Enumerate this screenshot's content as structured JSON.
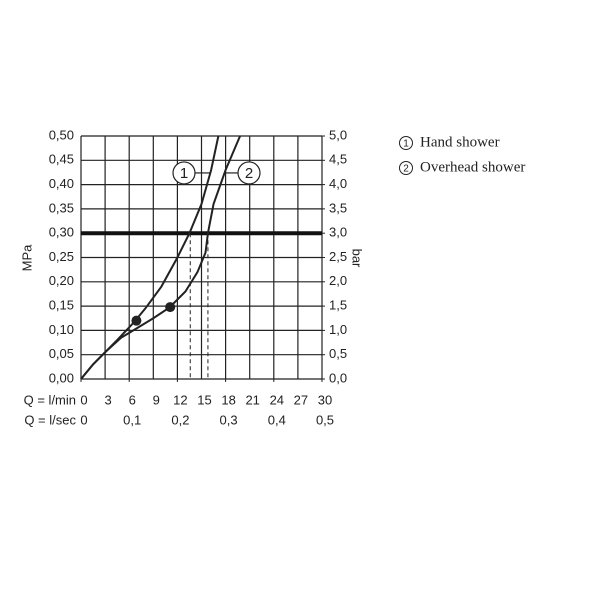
{
  "chart_data": {
    "type": "line",
    "xlabel": "Q = l/min",
    "x2label": "Q = l/sec",
    "ylabel": "MPa",
    "y2label": "bar",
    "xlim": [
      0,
      30
    ],
    "xticks": [
      0,
      3,
      6,
      9,
      12,
      15,
      18,
      21,
      24,
      27,
      30
    ],
    "x2lim": [
      0,
      0.5
    ],
    "x2ticks": [
      0,
      {
        "value": 0.1,
        "label": "0,1"
      },
      {
        "value": 0.2,
        "label": "0,2"
      },
      {
        "value": 0.3,
        "label": "0,3"
      },
      {
        "value": 0.4,
        "label": "0,4"
      },
      {
        "value": 0.5,
        "label": "0,5"
      }
    ],
    "ylim": [
      0,
      0.5
    ],
    "yticks": [
      {
        "value": 0,
        "label": "0,00"
      },
      {
        "value": 0.05,
        "label": "0,05"
      },
      {
        "value": 0.1,
        "label": "0,10"
      },
      {
        "value": 0.15,
        "label": "0,15"
      },
      {
        "value": 0.2,
        "label": "0,20"
      },
      {
        "value": 0.25,
        "label": "0,25"
      },
      {
        "value": 0.3,
        "label": "0,30"
      },
      {
        "value": 0.35,
        "label": "0,35"
      },
      {
        "value": 0.4,
        "label": "0,40"
      },
      {
        "value": 0.45,
        "label": "0,45"
      },
      {
        "value": 0.5,
        "label": "0,50"
      }
    ],
    "y2lim": [
      0,
      5
    ],
    "y2ticks": [
      {
        "value": 0,
        "label": "0,0"
      },
      {
        "value": 0.5,
        "label": "0,5"
      },
      {
        "value": 1,
        "label": "1,0"
      },
      {
        "value": 1.5,
        "label": "1,5"
      },
      {
        "value": 2,
        "label": "2,0"
      },
      {
        "value": 2.5,
        "label": "2,5"
      },
      {
        "value": 3,
        "label": "3,0"
      },
      {
        "value": 3.5,
        "label": "3,5"
      },
      {
        "value": 4,
        "label": "4,0"
      },
      {
        "value": 4.5,
        "label": "4,5"
      },
      {
        "value": 5,
        "label": "5,0"
      }
    ],
    "grid": true,
    "reference_y": 0.3,
    "series": [
      {
        "name": "Hand shower",
        "number": "1",
        "color": "#222222",
        "x": [
          0,
          1.5,
          3,
          4.5,
          6.5,
          8,
          10,
          12,
          13.5,
          15,
          16.2,
          17.1
        ],
        "values": [
          0,
          0.03,
          0.055,
          0.08,
          0.115,
          0.145,
          0.19,
          0.25,
          0.3,
          0.36,
          0.43,
          0.5
        ],
        "point": [
          6.9,
          0.12
        ],
        "drop_x": 13.6,
        "tag_y": 0.424
      },
      {
        "name": "Overhead shower",
        "number": "2",
        "color": "#222222",
        "x": [
          0,
          1.5,
          3,
          5,
          7,
          9,
          11,
          13,
          14.5,
          15.5,
          15.8,
          16.5,
          18,
          19.8
        ],
        "values": [
          0,
          0.03,
          0.055,
          0.085,
          0.105,
          0.125,
          0.147,
          0.18,
          0.22,
          0.26,
          0.3,
          0.36,
          0.43,
          0.5
        ],
        "point": [
          11.1,
          0.148
        ],
        "drop_x": 15.8,
        "tag_y": 0.424
      }
    ]
  }
}
